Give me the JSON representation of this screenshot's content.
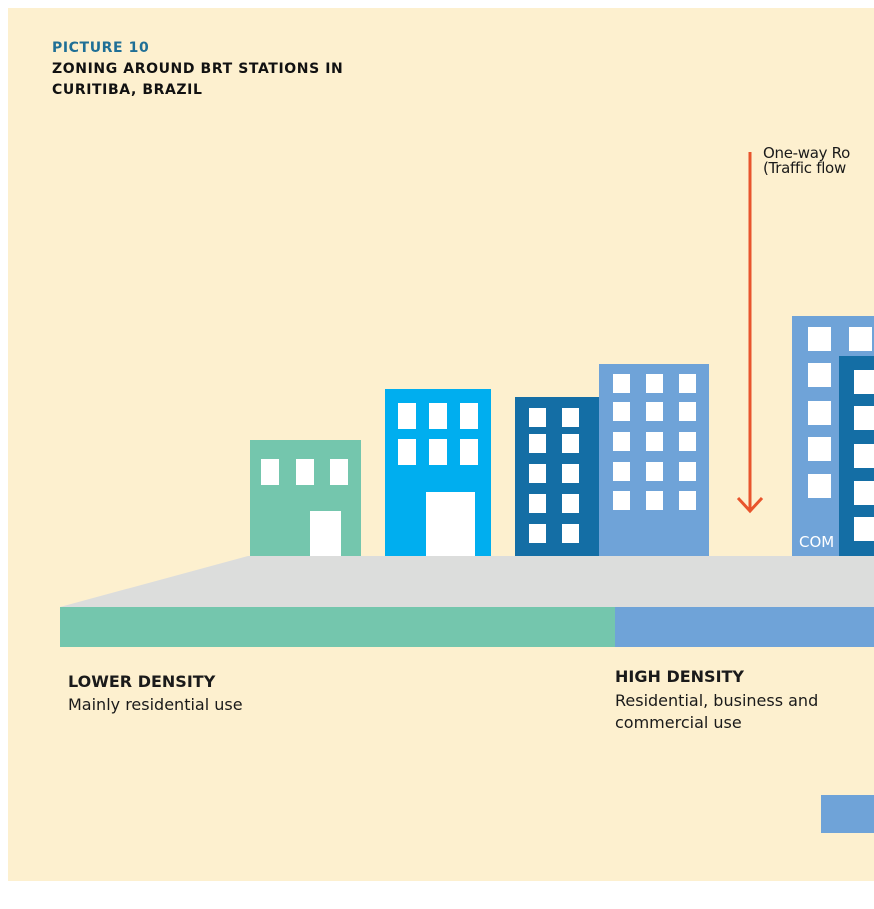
{
  "header": {
    "kicker": "PICTURE 10",
    "title": "ZONING AROUND BRT STATIONS IN CURITIBA, BRAZIL"
  },
  "road": {
    "label": "One-way Ro\n(Traffic flow"
  },
  "zones": [
    {
      "heading": "LOWER DENSITY",
      "description": "Mainly residential use",
      "color": "#74c6ad"
    },
    {
      "heading": "HIGH DENSITY",
      "description": "Residential, business and commercial use",
      "color": "#6fa3d8"
    }
  ],
  "buildings": {
    "partial_label": "COM"
  },
  "colors": {
    "background": "#fdf0cf",
    "heading_accent": "#1f6f96",
    "arrow": "#e8542c",
    "platform": "#dcdddc",
    "building_green": "#74c6ad",
    "building_cyan": "#00aeef",
    "building_navy": "#146ea5",
    "building_periwinkle": "#6fa3d8"
  }
}
